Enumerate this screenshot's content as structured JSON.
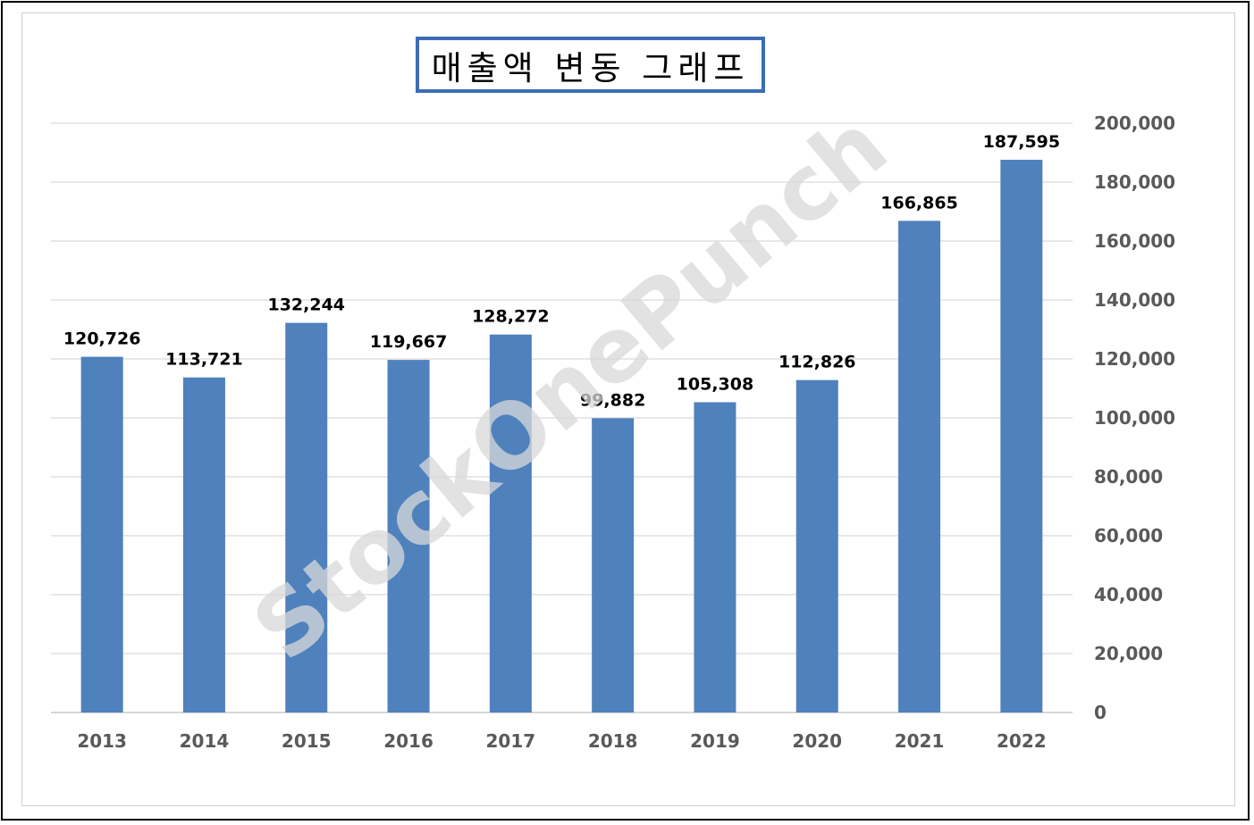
{
  "chart_data": {
    "type": "bar",
    "title": "매출액 변동 그래프",
    "categories": [
      "2013",
      "2014",
      "2015",
      "2016",
      "2017",
      "2018",
      "2019",
      "2020",
      "2021",
      "2022"
    ],
    "values": [
      120726,
      113721,
      132244,
      119667,
      128272,
      99882,
      105308,
      112826,
      166865,
      187595
    ],
    "data_labels": [
      "120,726",
      "113,721",
      "132,244",
      "119,667",
      "128,272",
      "99,882",
      "105,308",
      "112,826",
      "166,865",
      "187,595"
    ],
    "ylim": [
      0,
      200000
    ],
    "yticks": [
      0,
      20000,
      40000,
      60000,
      80000,
      100000,
      120000,
      140000,
      160000,
      180000,
      200000
    ],
    "ytick_labels": [
      "0",
      "20,000",
      "40,000",
      "60,000",
      "80,000",
      "100,000",
      "120,000",
      "140,000",
      "160,000",
      "180,000",
      "200,000"
    ],
    "y_axis_side": "right",
    "grid": true,
    "legend": "none",
    "bar_color": "#4f81bd",
    "watermark": "StockOnePunch"
  }
}
